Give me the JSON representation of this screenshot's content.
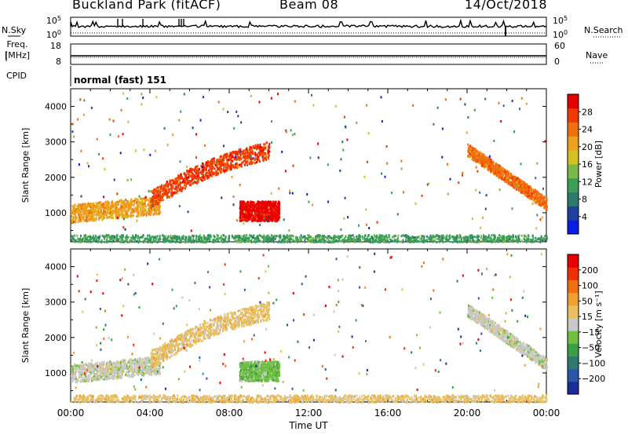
{
  "header": {
    "site": "Buckland Park (fitACF)",
    "beam": "Beam 08",
    "date": "14/Oct/2018"
  },
  "strips": {
    "nsky_label": "N.Sky",
    "nsky_ticks": [
      "10^5",
      "10^0"
    ],
    "nsearch_label": "N.Search",
    "nsearch_ticks": [
      "10^5",
      "10^0"
    ],
    "freq_label_1": "Freq.",
    "freq_label_2": "[MHz]",
    "freq_ticks": [
      "18",
      "8"
    ],
    "nave_label": "Nave",
    "nave_ticks": [
      "60",
      "0"
    ],
    "cpid_label": "CPID",
    "cpid_value": "normal (fast) 151"
  },
  "chart_data": [
    {
      "type": "heatmap",
      "name": "power",
      "ylabel": "Slant Range [km]",
      "yticks": [
        "4000",
        "3000",
        "2000",
        "1000"
      ],
      "ylim": [
        180,
        4500
      ],
      "xlim": [
        0,
        24
      ],
      "colorbar": {
        "label": "Power [dB]",
        "ticks": [
          "28",
          "24",
          "20",
          "16",
          "12",
          "8",
          "4"
        ],
        "colors": [
          "#0a1ee6",
          "#2040a0",
          "#2e7a6e",
          "#3a9e58",
          "#7ab848",
          "#d4c020",
          "#f0a020",
          "#f07010",
          "#f03a00",
          "#e80000"
        ]
      },
      "features": [
        {
          "region": "evening echoes",
          "x": [
            0,
            4.5
          ],
          "range_km": [
            700,
            1300
          ],
          "power_db": 20
        },
        {
          "region": "rising arc",
          "x": [
            4,
            10
          ],
          "range_km": [
            1400,
            3200
          ],
          "power_db": 26
        },
        {
          "region": "midday blob",
          "x": [
            8.5,
            10.5
          ],
          "range_km": [
            800,
            1350
          ],
          "power_db": 30
        },
        {
          "region": "dawn arc",
          "x": [
            20,
            24
          ],
          "range_km": [
            1100,
            2800
          ],
          "power_db": 24
        },
        {
          "region": "near-range ground band",
          "x": [
            0,
            24
          ],
          "range_km": [
            200,
            400
          ],
          "power_db": 10
        }
      ]
    },
    {
      "type": "heatmap",
      "name": "velocity",
      "xlabel": "Time UT",
      "ylabel": "Slant Range [km]",
      "xticks": [
        "00:00",
        "04:00",
        "08:00",
        "12:00",
        "16:00",
        "20:00",
        "00:00"
      ],
      "yticks": [
        "4000",
        "3000",
        "2000",
        "1000"
      ],
      "ylim": [
        180,
        4500
      ],
      "xlim": [
        0,
        24
      ],
      "colorbar": {
        "label": "Velocity [m s⁻¹]",
        "ticks": [
          "200",
          "100",
          "50",
          "15",
          "−15",
          "−50",
          "−100",
          "−200"
        ],
        "colors": [
          "#1a2e9a",
          "#2a56a8",
          "#2e7a6e",
          "#3aa048",
          "#70c040",
          "#c8c8c8",
          "#e8c060",
          "#f0a030",
          "#f07010",
          "#f03000",
          "#e80000"
        ]
      },
      "features": [
        {
          "region": "evening echoes",
          "x": [
            0,
            4.5
          ],
          "range_km": [
            700,
            1300
          ],
          "velocity": 0
        },
        {
          "region": "rising arc",
          "x": [
            4,
            10
          ],
          "range_km": [
            1400,
            3200
          ],
          "velocity": -40
        },
        {
          "region": "midday blob",
          "x": [
            8.5,
            10.5
          ],
          "range_km": [
            800,
            1350
          ],
          "velocity": 30
        },
        {
          "region": "dawn arc",
          "x": [
            20,
            24
          ],
          "range_km": [
            1100,
            2800
          ],
          "velocity": 0
        },
        {
          "region": "near-range ground band",
          "x": [
            0,
            24
          ],
          "range_km": [
            200,
            400
          ],
          "velocity": -20
        }
      ]
    }
  ]
}
